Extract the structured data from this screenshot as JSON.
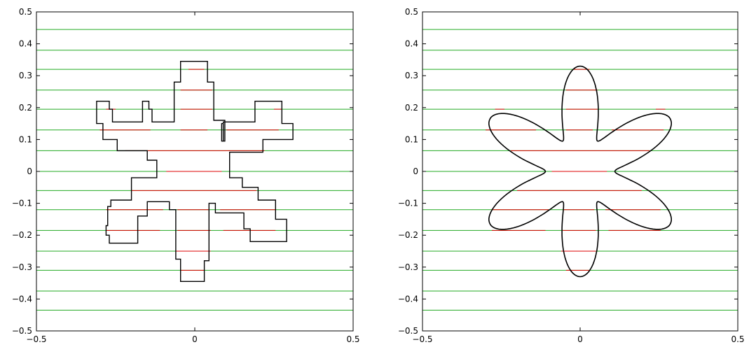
{
  "chart_data": [
    {
      "type": "line",
      "panel": "left",
      "title": "",
      "xlabel": "",
      "ylabel": "",
      "xlim": [
        -0.5,
        0.5
      ],
      "ylim": [
        -0.5,
        0.5
      ],
      "x_ticks": [
        -0.5,
        0,
        0.5
      ],
      "x_tick_labels": [
        "−0.5",
        "0",
        "0.5"
      ],
      "y_ticks": [
        0.5,
        0.4,
        0.3,
        0.2,
        0.1,
        0,
        -0.1,
        -0.2,
        -0.3,
        -0.4,
        -0.5
      ],
      "y_tick_labels": [
        "0.5",
        "0.4",
        "0.3",
        "0.2",
        "0.1",
        "0",
        "−0.1",
        "−0.2",
        "−0.3",
        "−0.4",
        "−0.5"
      ],
      "grid": false,
      "colors": {
        "green": "#22aa22",
        "red": "#dd0000",
        "black": "#000000"
      },
      "green_lines_y": [
        0.445,
        0.38,
        0.32,
        0.255,
        0.195,
        0.13,
        0.065,
        0,
        -0.06,
        -0.12,
        -0.185,
        -0.25,
        -0.31,
        -0.375,
        -0.435
      ],
      "red_segments": [
        {
          "y": 0.32,
          "x1": -0.02,
          "x2": 0.03
        },
        {
          "y": 0.255,
          "x1": -0.045,
          "x2": 0.055
        },
        {
          "y": 0.195,
          "x1": -0.045,
          "x2": 0.055,
          "also": true
        },
        {
          "y": 0.195,
          "x1": -0.28,
          "x2": -0.25
        },
        {
          "y": 0.195,
          "x1": 0.25,
          "x2": 0.275
        },
        {
          "y": 0.13,
          "x1": -0.3,
          "x2": -0.14
        },
        {
          "y": 0.13,
          "x1": -0.045,
          "x2": 0.04
        },
        {
          "y": 0.13,
          "x1": 0.1,
          "x2": 0.265
        },
        {
          "y": 0.065,
          "x1": -0.22,
          "x2": 0.22
        },
        {
          "y": 0,
          "x1": -0.09,
          "x2": 0.085
        },
        {
          "y": -0.06,
          "x1": -0.2,
          "x2": 0.195
        },
        {
          "y": -0.12,
          "x1": -0.28,
          "x2": -0.1
        },
        {
          "y": -0.12,
          "x1": -0.055,
          "x2": 0.045
        },
        {
          "y": -0.12,
          "x1": 0.08,
          "x2": 0.255
        },
        {
          "y": -0.185,
          "x1": -0.28,
          "x2": -0.11
        },
        {
          "y": -0.185,
          "x1": -0.055,
          "x2": 0.05
        },
        {
          "y": -0.185,
          "x1": 0.09,
          "x2": 0.255
        },
        {
          "y": -0.25,
          "x1": -0.06,
          "x2": 0.05
        },
        {
          "y": -0.31,
          "x1": -0.045,
          "x2": 0.03
        }
      ],
      "boundary": [
        [
          -0.045,
          0.345
        ],
        [
          0.04,
          0.345
        ],
        [
          0.04,
          0.28
        ],
        [
          0.06,
          0.28
        ],
        [
          0.06,
          0.16
        ],
        [
          0.095,
          0.16
        ],
        [
          0.095,
          0.12
        ],
        [
          0.095,
          0.095
        ],
        [
          0.09,
          0.095
        ],
        [
          0.09,
          0.15
        ],
        [
          0.09,
          0.15
        ],
        [
          0.085,
          0.15
        ],
        [
          0.085,
          0.1
        ],
        [
          0.085,
          0.095
        ],
        [
          0.09,
          0.095
        ],
        [
          0.09,
          0.155
        ],
        [
          0.19,
          0.155
        ],
        [
          0.19,
          0.22
        ],
        [
          0.275,
          0.22
        ],
        [
          0.275,
          0.195
        ],
        [
          0.275,
          0.15
        ],
        [
          0.31,
          0.15
        ],
        [
          0.31,
          0.1
        ],
        [
          0.215,
          0.1
        ],
        [
          0.215,
          0.06
        ],
        [
          0.11,
          0.06
        ],
        [
          0.11,
          0.03
        ],
        [
          0.11,
          -0.02
        ],
        [
          0.15,
          -0.02
        ],
        [
          0.15,
          -0.05
        ],
        [
          0.2,
          -0.05
        ],
        [
          0.2,
          -0.09
        ],
        [
          0.255,
          -0.09
        ],
        [
          0.255,
          -0.15
        ],
        [
          0.29,
          -0.15
        ],
        [
          0.29,
          -0.22
        ],
        [
          0.175,
          -0.22
        ],
        [
          0.175,
          -0.18
        ],
        [
          0.155,
          -0.18
        ],
        [
          0.155,
          -0.13
        ],
        [
          0.065,
          -0.13
        ],
        [
          0.065,
          -0.1
        ],
        [
          0.045,
          -0.1
        ],
        [
          0.045,
          -0.28
        ],
        [
          0.03,
          -0.28
        ],
        [
          0.03,
          -0.345
        ],
        [
          -0.045,
          -0.345
        ],
        [
          -0.045,
          -0.275
        ],
        [
          -0.06,
          -0.275
        ],
        [
          -0.06,
          -0.12
        ],
        [
          -0.08,
          -0.12
        ],
        [
          -0.08,
          -0.095
        ],
        [
          -0.15,
          -0.095
        ],
        [
          -0.15,
          -0.14
        ],
        [
          -0.18,
          -0.14
        ],
        [
          -0.18,
          -0.225
        ],
        [
          -0.27,
          -0.225
        ],
        [
          -0.27,
          -0.2
        ],
        [
          -0.28,
          -0.2
        ],
        [
          -0.28,
          -0.17
        ],
        [
          -0.275,
          -0.17
        ],
        [
          -0.275,
          -0.11
        ],
        [
          -0.265,
          -0.11
        ],
        [
          -0.265,
          -0.09
        ],
        [
          -0.2,
          -0.09
        ],
        [
          -0.2,
          -0.02
        ],
        [
          -0.12,
          -0.02
        ],
        [
          -0.12,
          0.035
        ],
        [
          -0.15,
          0.035
        ],
        [
          -0.15,
          0.065
        ],
        [
          -0.245,
          0.065
        ],
        [
          -0.245,
          0.1
        ],
        [
          -0.29,
          0.1
        ],
        [
          -0.29,
          0.15
        ],
        [
          -0.31,
          0.15
        ],
        [
          -0.31,
          0.22
        ],
        [
          -0.27,
          0.22
        ],
        [
          -0.27,
          0.195
        ],
        [
          -0.26,
          0.195
        ],
        [
          -0.26,
          0.155
        ],
        [
          -0.165,
          0.155
        ],
        [
          -0.165,
          0.22
        ],
        [
          -0.145,
          0.22
        ],
        [
          -0.145,
          0.195
        ],
        [
          -0.135,
          0.195
        ],
        [
          -0.135,
          0.155
        ],
        [
          -0.065,
          0.155
        ],
        [
          -0.065,
          0.28
        ],
        [
          -0.045,
          0.28
        ],
        [
          -0.045,
          0.345
        ]
      ]
    },
    {
      "type": "line",
      "panel": "right",
      "title": "",
      "xlabel": "",
      "ylabel": "",
      "xlim": [
        -0.5,
        0.5
      ],
      "ylim": [
        -0.5,
        0.5
      ],
      "x_ticks": [
        -0.5,
        0,
        0.5
      ],
      "x_tick_labels": [
        "−0.5",
        "0",
        "0.5"
      ],
      "y_ticks": [
        0.5,
        0.4,
        0.3,
        0.2,
        0.1,
        0,
        -0.1,
        -0.2,
        -0.3,
        -0.4,
        -0.5
      ],
      "y_tick_labels": [
        "0.5",
        "0.4",
        "0.3",
        "0.2",
        "0.1",
        "0",
        "−0.1",
        "−0.2",
        "−0.3",
        "−0.4",
        "−0.5"
      ],
      "grid": false,
      "colors": {
        "green": "#22aa22",
        "red": "#dd0000",
        "black": "#000000"
      },
      "green_lines_y": [
        0.445,
        0.38,
        0.32,
        0.255,
        0.195,
        0.13,
        0.065,
        0,
        -0.06,
        -0.12,
        -0.185,
        -0.25,
        -0.31,
        -0.375,
        -0.435
      ],
      "red_segments": [
        {
          "y": 0.32,
          "x1": -0.02,
          "x2": 0.03
        },
        {
          "y": 0.255,
          "x1": -0.045,
          "x2": 0.055
        },
        {
          "y": 0.195,
          "x1": -0.045,
          "x2": 0.055
        },
        {
          "y": 0.195,
          "x1": -0.27,
          "x2": -0.24
        },
        {
          "y": 0.195,
          "x1": 0.24,
          "x2": 0.27
        },
        {
          "y": 0.13,
          "x1": -0.3,
          "x2": -0.14
        },
        {
          "y": 0.13,
          "x1": -0.045,
          "x2": 0.04
        },
        {
          "y": 0.13,
          "x1": 0.1,
          "x2": 0.265
        },
        {
          "y": 0.065,
          "x1": -0.22,
          "x2": 0.22
        },
        {
          "y": 0,
          "x1": -0.09,
          "x2": 0.085
        },
        {
          "y": -0.06,
          "x1": -0.2,
          "x2": 0.195
        },
        {
          "y": -0.12,
          "x1": -0.28,
          "x2": -0.1
        },
        {
          "y": -0.12,
          "x1": -0.055,
          "x2": 0.045
        },
        {
          "y": -0.12,
          "x1": 0.08,
          "x2": 0.255
        },
        {
          "y": -0.185,
          "x1": -0.28,
          "x2": -0.11
        },
        {
          "y": -0.185,
          "x1": -0.055,
          "x2": 0.05
        },
        {
          "y": -0.185,
          "x1": 0.09,
          "x2": 0.255
        },
        {
          "y": -0.25,
          "x1": -0.06,
          "x2": 0.05
        },
        {
          "y": -0.31,
          "x1": -0.045,
          "x2": 0.03
        }
      ],
      "curve": {
        "r0": 0.22,
        "amp": 0.11,
        "petals": 6,
        "phase_deg": 90
      }
    }
  ]
}
